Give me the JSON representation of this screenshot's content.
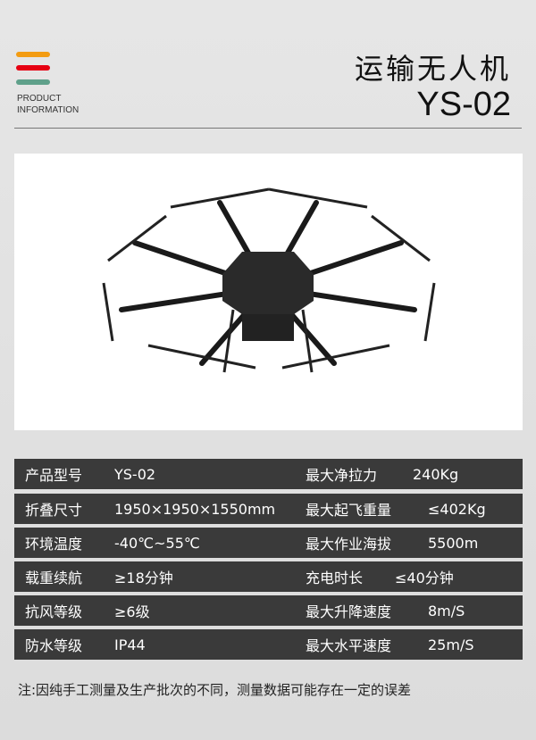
{
  "header": {
    "product_label_1": "PRODUCT",
    "product_label_2": "INFORMATION",
    "title": "运输无人机",
    "model": "YS-02",
    "bar_colors": [
      "#f39c12",
      "#e60012",
      "#5fa08a"
    ]
  },
  "photo": {
    "icon": "octocopter-drone-image"
  },
  "specs": [
    {
      "label1": "产品型号",
      "value1": "YS-02",
      "label2": "最大净拉力",
      "value2": "240Kg"
    },
    {
      "label1": "折叠尺寸",
      "value1": "1950×1950×1550mm",
      "label2": "最大起飞重量",
      "value2": "≤402Kg"
    },
    {
      "label1": "环境温度",
      "value1": "-40℃~55℃",
      "label2": "最大作业海拔",
      "value2": "5500m"
    },
    {
      "label1": "载重续航",
      "value1": "≥18分钟",
      "label2": "充电时长",
      "value2": "≤40分钟"
    },
    {
      "label1": "抗风等级",
      "value1": "≥6级",
      "label2": "最大升降速度",
      "value2": "8m/S"
    },
    {
      "label1": "防水等级",
      "value1": "IP44",
      "label2": "最大水平速度",
      "value2": "25m/S"
    }
  ],
  "note": "注:因纯手工测量及生产批次的不同，测量数据可能存在一定的误差"
}
